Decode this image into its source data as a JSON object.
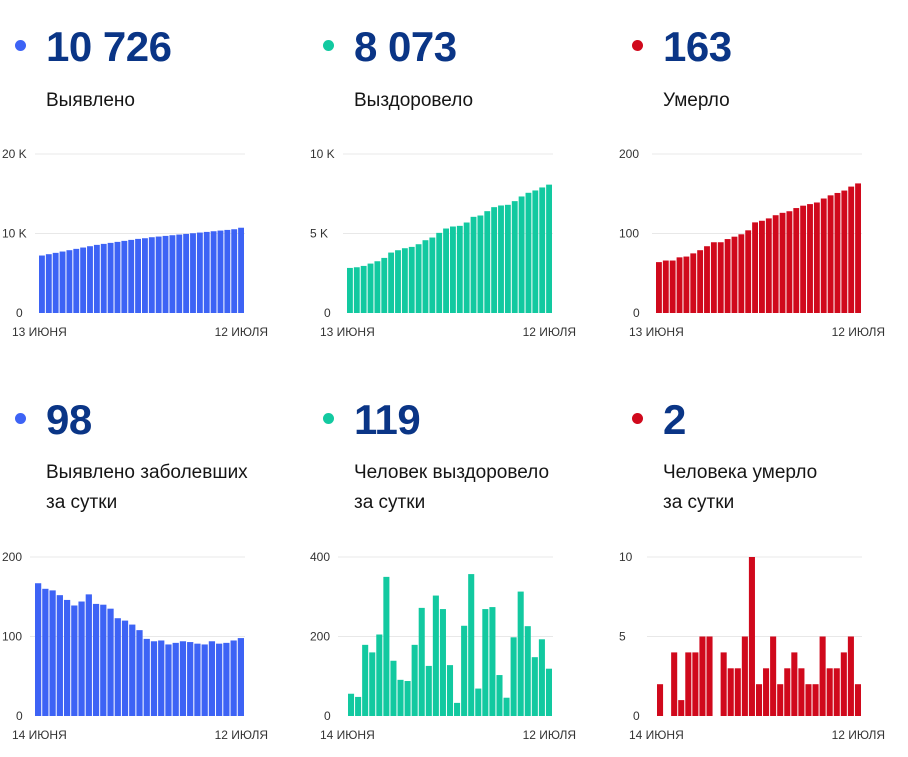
{
  "colors": {
    "blue": "#3d63f5",
    "green": "#12c9a0",
    "red": "#d0091c",
    "number": "#0a3586",
    "grid": "#e8e8e8"
  },
  "panels": [
    {
      "value": "10 726",
      "label": "Выявлено",
      "color": "blue"
    },
    {
      "value": "8 073",
      "label": "Выздоровело",
      "color": "green"
    },
    {
      "value": "163",
      "label": "Умерло",
      "color": "red"
    },
    {
      "value": "98",
      "label": "Выявлено заболевших\nза сутки",
      "color": "blue"
    },
    {
      "value": "119",
      "label": "Человек выздоровело\nза сутки",
      "color": "green"
    },
    {
      "value": "2",
      "label": "Человека умерло\nза сутки",
      "color": "red"
    }
  ],
  "chart_data": [
    {
      "type": "bar",
      "title": "Выявлено",
      "x_start_label": "13 июня",
      "x_end_label": "12 июля",
      "yticks": [
        0,
        10000,
        20000
      ],
      "ytick_labels": [
        "0",
        "10 K",
        "20 K"
      ],
      "ylim": [
        0,
        20000
      ],
      "color": "blue",
      "values": [
        7230,
        7398,
        7565,
        7732,
        7900,
        8067,
        8234,
        8401,
        8569,
        8694,
        8820,
        8945,
        9071,
        9196,
        9322,
        9405,
        9531,
        9615,
        9698,
        9782,
        9866,
        9949,
        10033,
        10117,
        10200,
        10284,
        10368,
        10451,
        10535,
        10726
      ]
    },
    {
      "type": "bar",
      "title": "Выздоровело",
      "x_start_label": "13 июня",
      "x_end_label": "12 июля",
      "yticks": [
        0,
        5000,
        10000
      ],
      "ytick_labels": [
        "0",
        "5 K",
        "10 K"
      ],
      "ylim": [
        0,
        10000
      ],
      "color": "green",
      "values": [
        2835,
        2877,
        2961,
        3108,
        3255,
        3465,
        3801,
        3948,
        4074,
        4158,
        4326,
        4578,
        4746,
        5040,
        5313,
        5439,
        5481,
        5691,
        6048,
        6132,
        6405,
        6657,
        6762,
        6804,
        7035,
        7329,
        7560,
        7707,
        7896,
        8073
      ]
    },
    {
      "type": "bar",
      "title": "Умерло",
      "x_start_label": "13 июня",
      "x_end_label": "12 июля",
      "yticks": [
        0,
        100,
        200
      ],
      "ytick_labels": [
        "0",
        "100",
        "200"
      ],
      "ylim": [
        0,
        200
      ],
      "color": "red",
      "values": [
        64,
        66,
        66,
        70,
        71,
        75,
        79,
        84,
        89,
        89,
        93,
        96,
        99,
        104,
        114,
        116,
        119,
        123,
        126,
        128,
        132,
        135,
        137,
        139,
        144,
        148,
        151,
        154,
        159,
        163
      ]
    },
    {
      "type": "bar",
      "title": "Выявлено заболевших за сутки",
      "x_start_label": "14 июня",
      "x_end_label": "12 июля",
      "yticks": [
        0,
        100,
        200
      ],
      "ytick_labels": [
        "0",
        "100",
        "200"
      ],
      "ylim": [
        0,
        200
      ],
      "color": "blue",
      "values": [
        167,
        160,
        158,
        152,
        146,
        139,
        144,
        153,
        141,
        140,
        135,
        123,
        120,
        115,
        108,
        97,
        94,
        95,
        90,
        92,
        94,
        93,
        91,
        90,
        94,
        91,
        92,
        95,
        98
      ]
    },
    {
      "type": "bar",
      "title": "Человек выздоровело за сутки",
      "x_start_label": "14 июня",
      "x_end_label": "12 июля",
      "yticks": [
        0,
        200,
        400
      ],
      "ytick_labels": [
        "0",
        "200",
        "400"
      ],
      "ylim": [
        0,
        400
      ],
      "color": "green",
      "values": [
        56,
        48,
        179,
        160,
        205,
        350,
        139,
        91,
        88,
        179,
        272,
        126,
        303,
        269,
        128,
        33,
        227,
        357,
        69,
        269,
        274,
        103,
        46,
        198,
        313,
        226,
        148,
        193,
        119
      ]
    },
    {
      "type": "bar",
      "title": "Человека умерло за сутки",
      "x_start_label": "14 июня",
      "x_end_label": "12 июля",
      "yticks": [
        0,
        5,
        10
      ],
      "ytick_labels": [
        "0",
        "5",
        "10"
      ],
      "ylim": [
        0,
        10
      ],
      "color": "red",
      "values": [
        2,
        0,
        4,
        1,
        4,
        4,
        5,
        5,
        0,
        4,
        3,
        3,
        5,
        10,
        2,
        3,
        5,
        2,
        3,
        4,
        3,
        2,
        2,
        5,
        3,
        3,
        4,
        5,
        2
      ]
    }
  ]
}
